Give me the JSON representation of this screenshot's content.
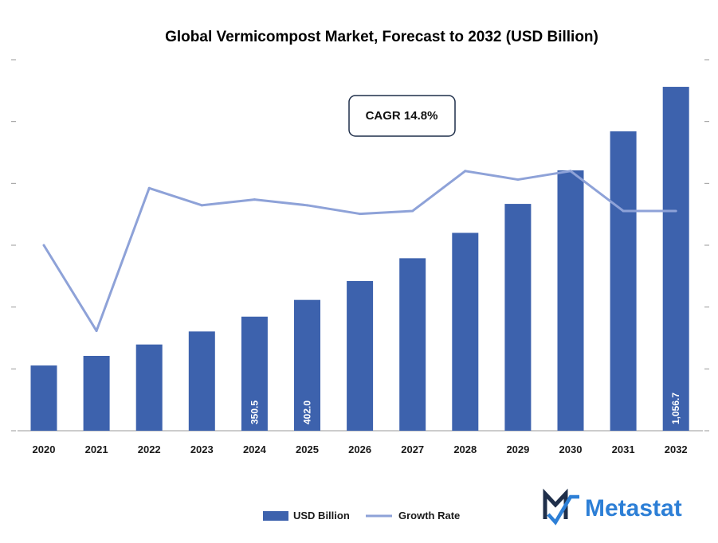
{
  "colors": {
    "bar": "#3d62ad",
    "line": "#8ea2d8",
    "axis": "#9a9a9a",
    "brand_blue": "#2d7fd6",
    "brand_dark": "#1f2f4a"
  },
  "chart_data": {
    "type": "bar",
    "title": "Global Vermicompost Market, Forecast to 2032 (USD Billion)",
    "categories": [
      "2020",
      "2021",
      "2022",
      "2023",
      "2024",
      "2025",
      "2026",
      "2027",
      "2028",
      "2029",
      "2030",
      "2031",
      "2032"
    ],
    "series": [
      {
        "name": "USD Billion",
        "type": "bar",
        "values": [
          200.5,
          230.0,
          265.0,
          305.0,
          350.5,
          402.0,
          460.0,
          530.0,
          608.0,
          697.0,
          800.0,
          920.0,
          1056.7
        ]
      },
      {
        "name": "Growth Rate",
        "type": "line",
        "values": [
          11.5,
          8.5,
          13.5,
          12.9,
          13.1,
          12.9,
          12.6,
          12.7,
          14.1,
          13.8,
          14.1,
          12.7,
          12.7
        ]
      }
    ],
    "data_labels": {
      "4": "350.5",
      "5": "402.0",
      "12": "1,056.7"
    },
    "annotation": "CAGR 14.8%",
    "legend_position": "bottom-center",
    "grid": false
  },
  "brand": {
    "name": "Metastat",
    "logo_icon": "metastat-m-logo-icon"
  }
}
